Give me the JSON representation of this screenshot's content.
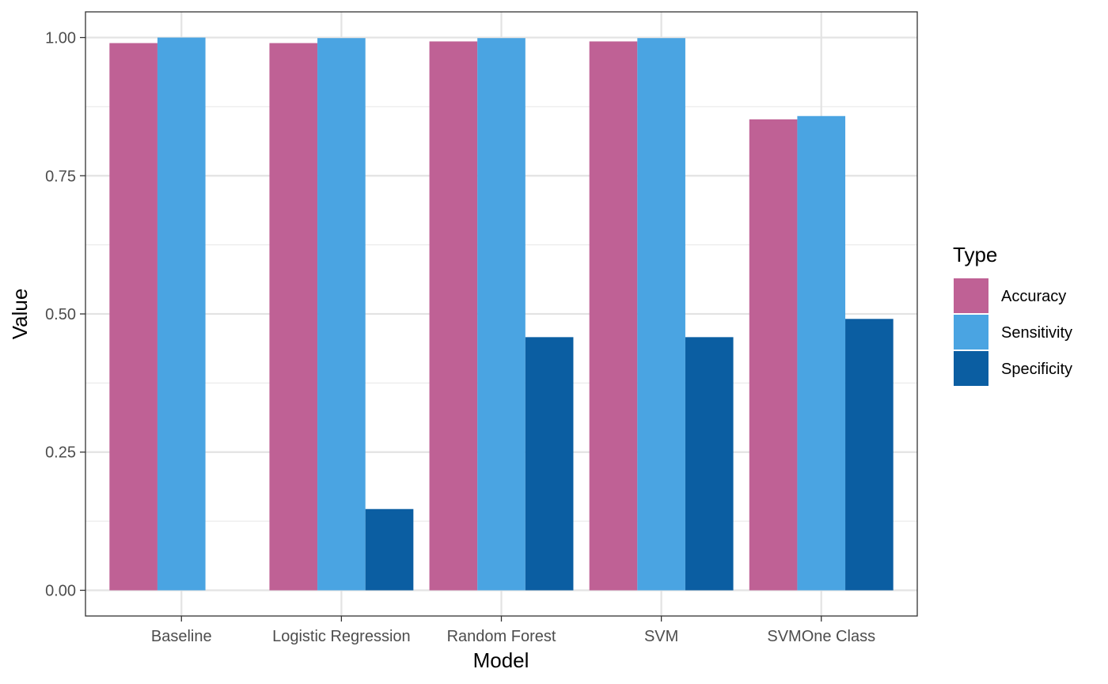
{
  "chart_data": {
    "type": "bar",
    "title": "",
    "xlabel": "Model",
    "ylabel": "Value",
    "categories": [
      "Baseline",
      "Logistic Regression",
      "Random Forest",
      "SVM",
      "SVMOne Class"
    ],
    "series": [
      {
        "name": "Accuracy",
        "color": "#BF6195",
        "values": [
          0.99,
          0.99,
          0.993,
          0.993,
          0.852
        ]
      },
      {
        "name": "Sensitivity",
        "color": "#4AA4E2",
        "values": [
          1.0,
          0.999,
          0.999,
          0.999,
          0.858
        ]
      },
      {
        "name": "Specificity",
        "color": "#0B5EA2",
        "values": [
          0.0,
          0.147,
          0.458,
          0.458,
          0.491
        ]
      }
    ],
    "ylim": [
      -0.0465,
      1.0465
    ],
    "yticks": [
      0.0,
      0.25,
      0.5,
      0.75,
      1.0
    ],
    "ytick_labels": [
      "0.00",
      "0.25",
      "0.50",
      "0.75",
      "1.00"
    ],
    "grid": true,
    "legend": {
      "title": "Type",
      "position": "right"
    }
  }
}
